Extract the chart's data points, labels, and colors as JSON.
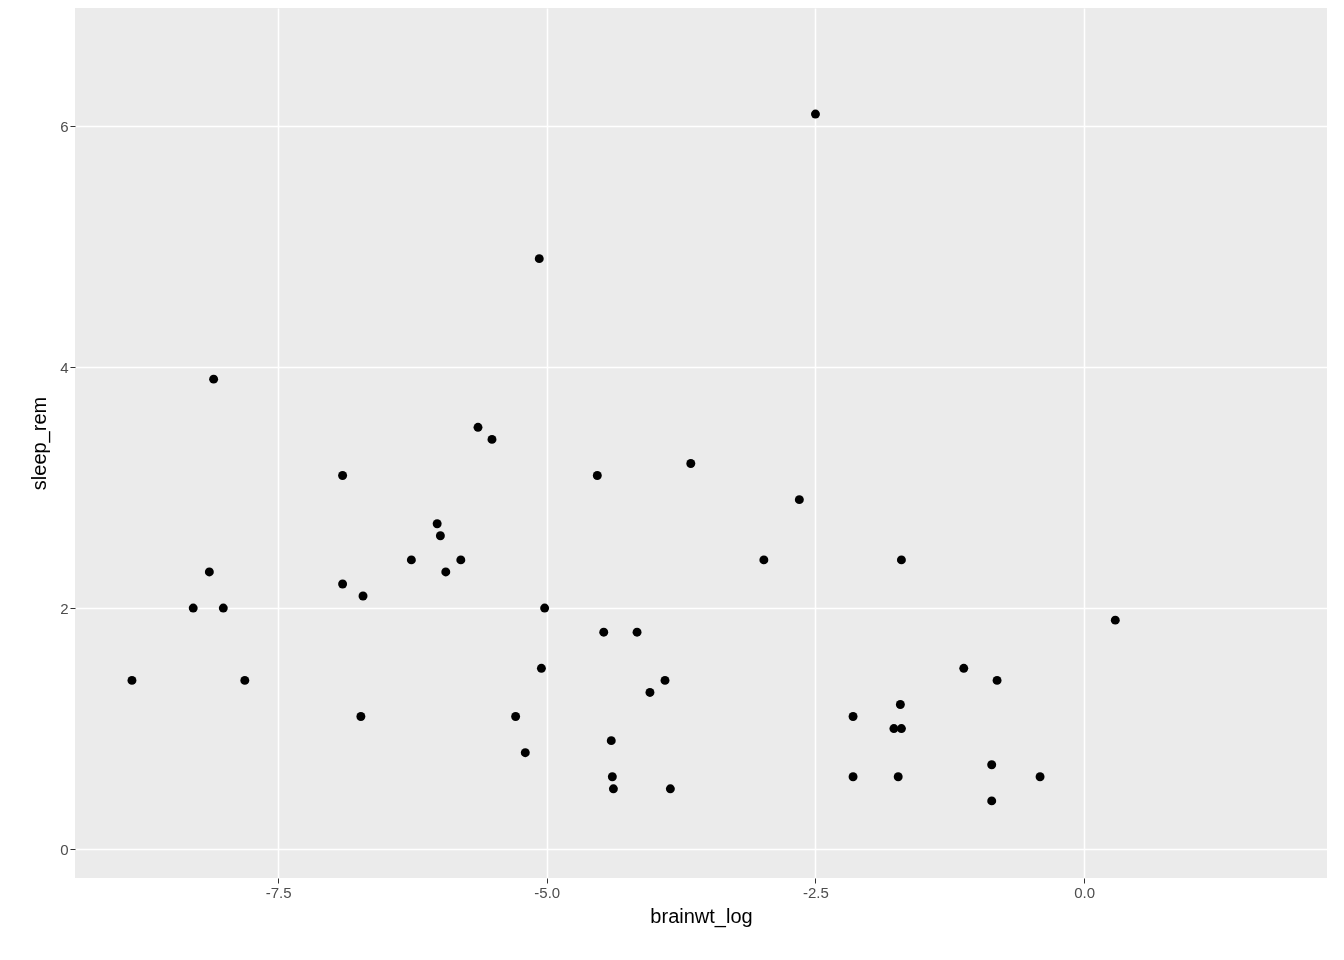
{
  "chart_data": {
    "type": "scatter",
    "xlabel": "brainwt_log",
    "ylabel": "sleep_rem",
    "x": [
      -8.86,
      -8.29,
      -8.14,
      -8.1,
      -8.01,
      -7.81,
      -6.9,
      -6.9,
      -6.73,
      -6.71,
      -6.26,
      -6.02,
      -5.99,
      -5.94,
      -5.8,
      -5.64,
      -5.51,
      -5.29,
      -5.2,
      -5.07,
      -5.05,
      -5.02,
      -4.53,
      -4.47,
      -4.4,
      -4.39,
      -4.38,
      -4.16,
      -4.04,
      -3.9,
      -3.85,
      -3.66,
      -2.98,
      -2.65,
      -2.5,
      -2.15,
      -2.15,
      -1.77,
      -1.73,
      -1.71,
      -1.7,
      -1.7,
      -1.12,
      -0.86,
      -0.86,
      -0.81,
      -0.41,
      0.29
    ],
    "series": [
      {
        "color": "#000000",
        "values": [
          1.4,
          2.0,
          2.3,
          3.9,
          2.0,
          1.4,
          3.1,
          2.2,
          1.1,
          2.1,
          2.4,
          2.7,
          2.6,
          2.3,
          2.4,
          3.5,
          3.4,
          1.1,
          0.8,
          4.9,
          1.5,
          2.0,
          3.1,
          1.8,
          0.9,
          0.6,
          0.5,
          1.8,
          1.3,
          1.4,
          0.5,
          3.2,
          2.4,
          2.9,
          6.1,
          1.1,
          0.6,
          1.0,
          0.6,
          1.2,
          1.0,
          2.4,
          1.5,
          0.7,
          0.4,
          1.4,
          0.6,
          1.9
        ]
      }
    ],
    "xlim": [
      -9.39,
      2.26
    ],
    "ylim": [
      -0.24,
      6.98
    ],
    "xticks": [
      -7.5,
      {
        "value": -5,
        "label": "-5.0"
      },
      -2.5,
      {
        "value": 0,
        "label": "0.0"
      }
    ],
    "yticks": [
      0,
      2,
      4,
      6
    ],
    "grid": true,
    "marker": "circle"
  }
}
